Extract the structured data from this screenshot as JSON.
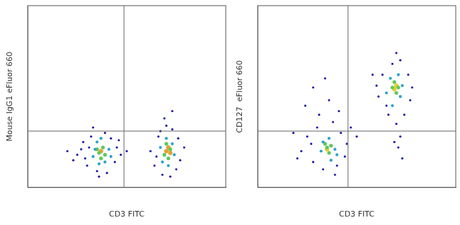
{
  "chart_data": [
    {
      "type": "scatter",
      "x_label": "CD3 FITC",
      "y_label": "Mouse IgG1 eFluor 660",
      "xlim": [
        0,
        1
      ],
      "ylim": [
        0,
        1
      ],
      "tick_labels": false,
      "grid": false,
      "gates": {
        "x": 0.486,
        "y": 0.31
      },
      "series": [
        {
          "color": "#1c1ca8",
          "values": [
            [
              0.25,
              0.18
            ],
            [
              0.28,
              0.25
            ],
            [
              0.3,
              0.12
            ],
            [
              0.32,
              0.28
            ],
            [
              0.27,
              0.21
            ],
            [
              0.45,
              0.22
            ],
            [
              0.44,
              0.14
            ],
            [
              0.42,
              0.27
            ],
            [
              0.35,
              0.09
            ],
            [
              0.39,
              0.3
            ],
            [
              0.47,
              0.18
            ],
            [
              0.23,
              0.15
            ],
            [
              0.33,
              0.33
            ],
            [
              0.4,
              0.08
            ],
            [
              0.29,
              0.16
            ],
            [
              0.46,
              0.26
            ],
            [
              0.36,
              0.06
            ],
            [
              0.2,
              0.2
            ],
            [
              0.5,
              0.2
            ],
            [
              0.31,
              0.22
            ],
            [
              0.64,
              0.12
            ],
            [
              0.66,
              0.28
            ],
            [
              0.77,
              0.15
            ],
            [
              0.76,
              0.27
            ],
            [
              0.68,
              0.07
            ],
            [
              0.73,
              0.32
            ],
            [
              0.7,
              0.34
            ],
            [
              0.62,
              0.2
            ],
            [
              0.79,
              0.22
            ],
            [
              0.72,
              0.06
            ],
            [
              0.65,
              0.17
            ],
            [
              0.75,
              0.1
            ],
            [
              0.69,
              0.38
            ],
            [
              0.73,
              0.42
            ],
            [
              0.67,
              0.31
            ]
          ]
        },
        {
          "color": "#2aa3c8",
          "values": [
            [
              0.33,
              0.17
            ],
            [
              0.35,
              0.25
            ],
            [
              0.41,
              0.21
            ],
            [
              0.39,
              0.14
            ],
            [
              0.34,
              0.21
            ],
            [
              0.42,
              0.17
            ],
            [
              0.37,
              0.27
            ],
            [
              0.36,
              0.13
            ],
            [
              0.68,
              0.14
            ],
            [
              0.7,
              0.27
            ],
            [
              0.74,
              0.18
            ],
            [
              0.67,
              0.22
            ],
            [
              0.73,
              0.24
            ],
            [
              0.71,
              0.12
            ]
          ]
        },
        {
          "color": "#5ec85a",
          "values": [
            [
              0.36,
              0.19
            ],
            [
              0.38,
              0.22
            ],
            [
              0.39,
              0.18
            ],
            [
              0.37,
              0.16
            ],
            [
              0.35,
              0.21
            ],
            [
              0.69,
              0.18
            ],
            [
              0.72,
              0.21
            ],
            [
              0.7,
              0.24
            ],
            [
              0.71,
              0.16
            ]
          ]
        },
        {
          "color": "#e8a030",
          "values": [
            [
              0.37,
              0.2
            ],
            [
              0.7,
              0.2
            ],
            [
              0.71,
              0.22
            ],
            [
              0.72,
              0.19
            ]
          ]
        }
      ]
    },
    {
      "type": "scatter",
      "x_label": "CD3 FITC",
      "y_label": "CD127  eFluor 660",
      "xlim": [
        0,
        1
      ],
      "ylim": [
        0,
        1
      ],
      "tick_labels": false,
      "grid": false,
      "gates": {
        "x": 0.456,
        "y": 0.31
      },
      "series": [
        {
          "color": "#1c1ca8",
          "values": [
            [
              0.22,
              0.2
            ],
            [
              0.25,
              0.28
            ],
            [
              0.28,
              0.14
            ],
            [
              0.3,
              0.33
            ],
            [
              0.42,
              0.3
            ],
            [
              0.44,
              0.17
            ],
            [
              0.33,
              0.1
            ],
            [
              0.4,
              0.12
            ],
            [
              0.27,
              0.24
            ],
            [
              0.45,
              0.24
            ],
            [
              0.38,
              0.36
            ],
            [
              0.31,
              0.4
            ],
            [
              0.24,
              0.45
            ],
            [
              0.36,
              0.48
            ],
            [
              0.28,
              0.55
            ],
            [
              0.18,
              0.3
            ],
            [
              0.41,
              0.42
            ],
            [
              0.34,
              0.6
            ],
            [
              0.47,
              0.33
            ],
            [
              0.2,
              0.16
            ],
            [
              0.5,
              0.28
            ],
            [
              0.39,
              0.07
            ],
            [
              0.61,
              0.5
            ],
            [
              0.63,
              0.62
            ],
            [
              0.77,
              0.48
            ],
            [
              0.76,
              0.62
            ],
            [
              0.66,
              0.4
            ],
            [
              0.72,
              0.7
            ],
            [
              0.68,
              0.68
            ],
            [
              0.6,
              0.56
            ],
            [
              0.78,
              0.55
            ],
            [
              0.65,
              0.45
            ],
            [
              0.74,
              0.4
            ],
            [
              0.7,
              0.35
            ],
            [
              0.72,
              0.28
            ],
            [
              0.71,
              0.22
            ],
            [
              0.73,
              0.16
            ],
            [
              0.69,
              0.25
            ],
            [
              0.58,
              0.62
            ],
            [
              0.7,
              0.74
            ]
          ]
        },
        {
          "color": "#2aa3c8",
          "values": [
            [
              0.32,
              0.2
            ],
            [
              0.36,
              0.27
            ],
            [
              0.39,
              0.21
            ],
            [
              0.37,
              0.15
            ],
            [
              0.33,
              0.25
            ],
            [
              0.4,
              0.18
            ],
            [
              0.65,
              0.52
            ],
            [
              0.67,
              0.6
            ],
            [
              0.72,
              0.5
            ],
            [
              0.71,
              0.62
            ],
            [
              0.68,
              0.45
            ],
            [
              0.73,
              0.56
            ]
          ]
        },
        {
          "color": "#5ec85a",
          "values": [
            [
              0.35,
              0.22
            ],
            [
              0.36,
              0.19
            ],
            [
              0.34,
              0.24
            ],
            [
              0.37,
              0.23
            ],
            [
              0.68,
              0.55
            ],
            [
              0.7,
              0.52
            ],
            [
              0.69,
              0.58
            ],
            [
              0.71,
              0.55
            ]
          ]
        },
        {
          "color": "#e0d030",
          "values": [
            [
              0.35,
              0.21
            ],
            [
              0.69,
              0.54
            ],
            [
              0.7,
              0.56
            ]
          ]
        }
      ]
    }
  ]
}
